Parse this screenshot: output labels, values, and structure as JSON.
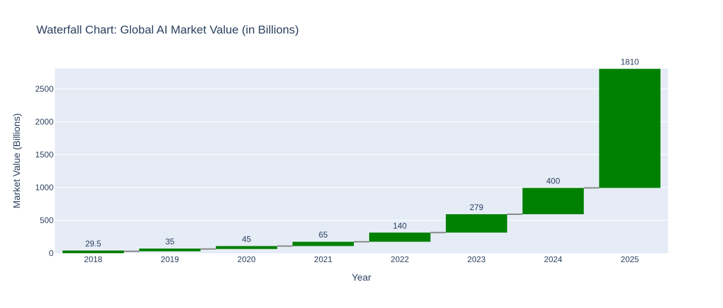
{
  "chart_data": {
    "type": "waterfall",
    "title": "Waterfall Chart: Global AI Market Value (in Billions)",
    "xlabel": "Year",
    "ylabel": "Market Value (Billions)",
    "categories": [
      "2018",
      "2019",
      "2020",
      "2021",
      "2022",
      "2023",
      "2024",
      "2025"
    ],
    "values": [
      29.5,
      35,
      45,
      65,
      140,
      279,
      400,
      1810
    ],
    "text_labels": [
      "29.5",
      "35",
      "45",
      "65",
      "140",
      "279",
      "400",
      "1810"
    ],
    "ylim": [
      0,
      2810
    ],
    "yticks": [
      0,
      500,
      1000,
      1500,
      2000,
      2500
    ],
    "grid": true,
    "colors": {
      "increase": "#008000",
      "connector": "#888888",
      "plot_bg": "#e5ecf6",
      "grid": "#ffffff",
      "text": "#2a3f5f"
    }
  }
}
